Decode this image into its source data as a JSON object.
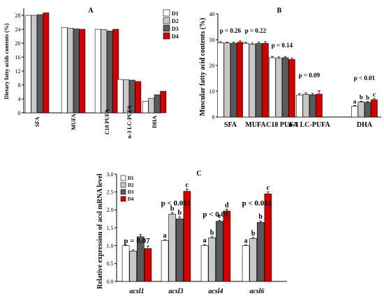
{
  "colors": {
    "D1": "#ffffff",
    "D2": "#c8c8c8",
    "D3": "#5a5a5a",
    "D4": "#d40000"
  },
  "chart_data": [
    {
      "panel": "A",
      "type": "bar",
      "ylabel": "Dietary fatty acids contents (%)",
      "ylim": [
        0,
        30
      ],
      "yticks": [
        0,
        4,
        8,
        12,
        16,
        20,
        24,
        28
      ],
      "categories": [
        "SFA",
        "MUFA",
        "C18 PUFA",
        "n-3 LC-PUFA",
        "DHA"
      ],
      "legend": [
        "D1",
        "D2",
        "D3",
        "D4"
      ],
      "series": [
        {
          "name": "D1",
          "values": [
            28.0,
            24.5,
            24.0,
            9.6,
            3.3
          ]
        },
        {
          "name": "D2",
          "values": [
            28.0,
            24.3,
            23.9,
            9.5,
            4.2
          ]
        },
        {
          "name": "D3",
          "values": [
            28.2,
            24.1,
            23.5,
            9.4,
            5.2
          ]
        },
        {
          "name": "D4",
          "values": [
            28.7,
            24.0,
            24.0,
            9.0,
            6.2
          ]
        }
      ]
    },
    {
      "panel": "B",
      "type": "bar",
      "ylabel": "Muscular fatty acid contents (%)",
      "ylim": [
        0,
        40
      ],
      "yticks": [
        0,
        10,
        20,
        30,
        40
      ],
      "categories": [
        "SFA",
        "MUFA",
        "C18 PUFA",
        "n-3 LC-PUFA",
        "DHA"
      ],
      "series": [
        {
          "name": "D1",
          "values": [
            28.8,
            28.5,
            23.0,
            8.5,
            4.2
          ],
          "errors": [
            0.4,
            0.5,
            0.5,
            0.5,
            0.3
          ]
        },
        {
          "name": "D2",
          "values": [
            28.7,
            28.2,
            22.8,
            8.8,
            5.8
          ],
          "errors": [
            0.4,
            0.5,
            0.5,
            0.6,
            0.3
          ]
        },
        {
          "name": "D3",
          "values": [
            28.6,
            28.5,
            23.0,
            8.6,
            5.7
          ],
          "errors": [
            0.5,
            0.5,
            0.5,
            0.5,
            0.3
          ]
        },
        {
          "name": "D4",
          "values": [
            29.0,
            28.6,
            22.3,
            8.9,
            6.7
          ],
          "errors": [
            0.5,
            0.6,
            0.5,
            1.2,
            0.4
          ]
        }
      ],
      "p_values": [
        "p = 0.26",
        "p = 0.22",
        "p = 0.14",
        "p = 0.09",
        "p < 0.01"
      ],
      "significance_letters": [
        [],
        [],
        [],
        [],
        [
          "a",
          "b",
          "b",
          "c"
        ]
      ]
    },
    {
      "panel": "C",
      "type": "bar",
      "ylabel": "Relative expression of acsl  mRNA level",
      "ylim": [
        0,
        3.0
      ],
      "yticks": [
        0.0,
        0.5,
        1.0,
        1.5,
        2.0,
        2.5,
        3.0
      ],
      "categories": [
        "acsl1",
        "acsl3",
        "acsl4",
        "acsl6"
      ],
      "legend": [
        "D1",
        "D2",
        "D3",
        "D4"
      ],
      "series": [
        {
          "name": "D1",
          "values": [
            1.0,
            1.14,
            1.0,
            1.0
          ],
          "errors": [
            0.02,
            0.03,
            0.03,
            0.02
          ]
        },
        {
          "name": "D2",
          "values": [
            0.85,
            1.88,
            1.22,
            1.2
          ],
          "errors": [
            0.03,
            0.04,
            0.03,
            0.03
          ]
        },
        {
          "name": "D3",
          "values": [
            1.25,
            1.75,
            1.68,
            1.65
          ],
          "errors": [
            0.06,
            0.05,
            0.03,
            0.04
          ]
        },
        {
          "name": "D4",
          "values": [
            0.92,
            2.52,
            1.97,
            2.45
          ],
          "errors": [
            0.07,
            0.06,
            0.05,
            0.05
          ]
        }
      ],
      "p_values": [
        "p = 0.07",
        "p < 0.001",
        "p < 0.01",
        "p < 0.001"
      ],
      "significance_letters": [
        [],
        [
          "a",
          "b",
          "b",
          "c"
        ],
        [
          "a",
          "b",
          "c",
          "d"
        ],
        [
          "a",
          "b",
          "b",
          "c"
        ]
      ]
    }
  ]
}
